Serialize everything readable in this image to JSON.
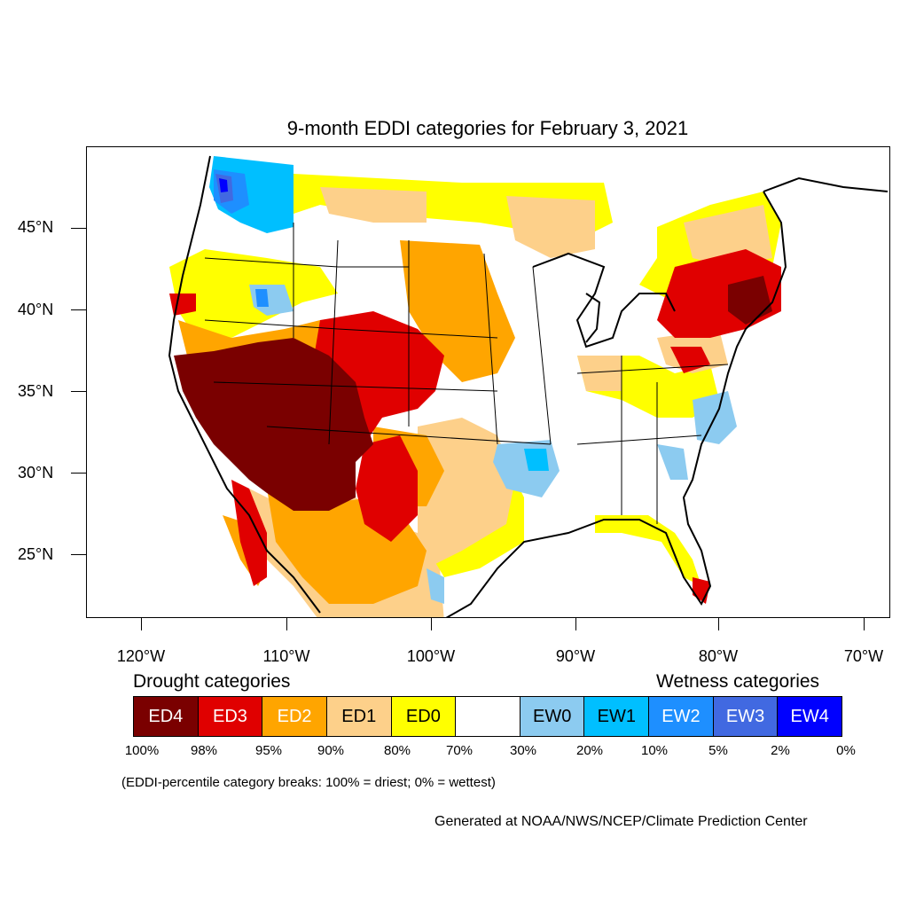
{
  "title": "9-month EDDI categories for February 3, 2021",
  "lat_labels": [
    "45°N",
    "40°N",
    "35°N",
    "30°N",
    "25°N"
  ],
  "lon_labels": [
    "120°W",
    "110°W",
    "100°W",
    "90°W",
    "80°W",
    "70°W"
  ],
  "legend": {
    "drought_heading": "Drought categories",
    "wetness_heading": "Wetness categories",
    "categories": [
      {
        "label": "ED4",
        "color": "#7a0000",
        "text_color": "#ffffff"
      },
      {
        "label": "ED3",
        "color": "#e00000",
        "text_color": "#ffffff"
      },
      {
        "label": "ED2",
        "color": "#ffa500",
        "text_color": "#ffffff"
      },
      {
        "label": "ED1",
        "color": "#fdd08a",
        "text_color": "#000000"
      },
      {
        "label": "ED0",
        "color": "#ffff00",
        "text_color": "#000000"
      },
      {
        "label": "",
        "color": "#ffffff",
        "text_color": "#000000"
      },
      {
        "label": "EW0",
        "color": "#8ccbf0",
        "text_color": "#000000"
      },
      {
        "label": "EW1",
        "color": "#00bfff",
        "text_color": "#000000"
      },
      {
        "label": "EW2",
        "color": "#1e8fff",
        "text_color": "#ffffff"
      },
      {
        "label": "EW3",
        "color": "#4169e1",
        "text_color": "#ffffff"
      },
      {
        "label": "EW4",
        "color": "#0000ff",
        "text_color": "#ffffff"
      }
    ],
    "breaks": [
      "100%",
      "98%",
      "95%",
      "90%",
      "80%",
      "70%",
      "30%",
      "20%",
      "10%",
      "5%",
      "2%",
      "0%"
    ]
  },
  "note": "(EDDI-percentile category breaks: 100% = driest; 0% = wettest)",
  "credit": "Generated at NOAA/NWS/NCEP/Climate Prediction Center"
}
